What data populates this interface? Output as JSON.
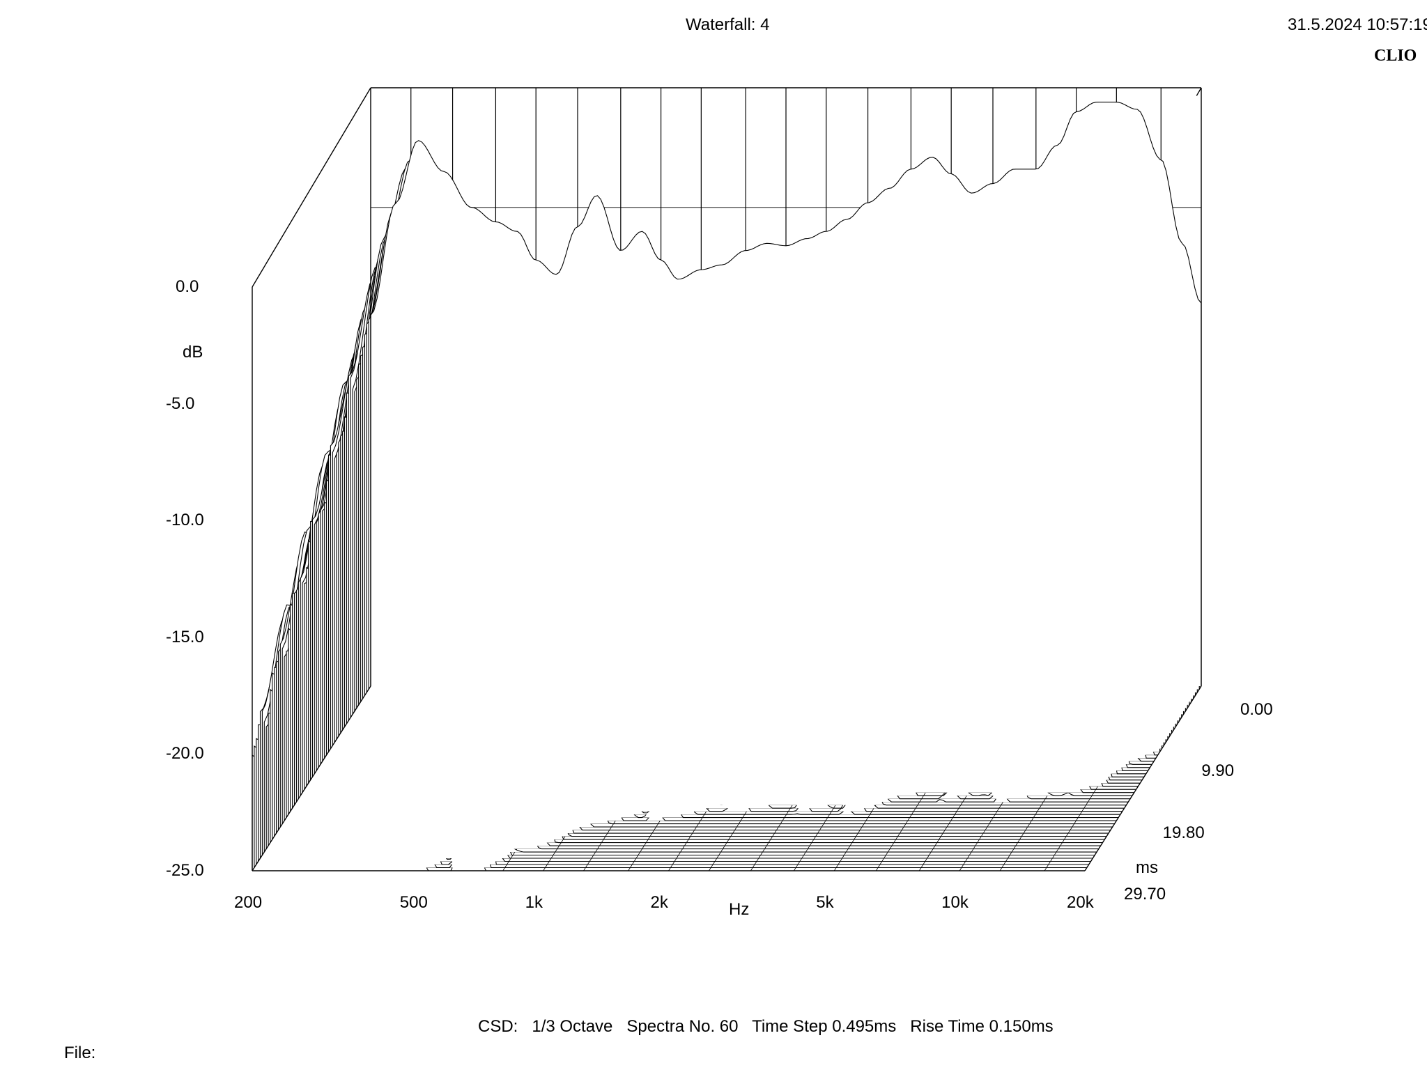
{
  "header": {
    "title": "Waterfall: 4",
    "timestamp": "31.5.2024 10:57:19",
    "brand": "CLIO"
  },
  "footer": {
    "settings": "CSD:   1/3 Octave   Spectra No. 60   Time Step 0.495ms   Rise Time 0.150ms",
    "file_label": "File:"
  },
  "chart_data": {
    "type": "waterfall",
    "y_axis": {
      "label": "dB",
      "ticks": [
        "0.0",
        "-5.0",
        "-10.0",
        "-15.0",
        "-20.0",
        "-25.0"
      ],
      "range": [
        -25,
        0
      ]
    },
    "x_axis": {
      "label": "Hz",
      "ticks": [
        "200",
        "500",
        "1k",
        "2k",
        "5k",
        "10k",
        "20k"
      ],
      "scale": "log",
      "range": [
        200,
        20000
      ]
    },
    "z_axis": {
      "label": "ms",
      "ticks": [
        "0.00",
        "9.90",
        "19.80",
        "29.70"
      ],
      "range": [
        0,
        29.7
      ]
    },
    "spectra_count": 60,
    "time_step_ms": 0.495,
    "rise_time_ms": 0.15,
    "smoothing": "1/3 Octave",
    "first_spectrum": {
      "freq_hz": [
        200,
        230,
        260,
        300,
        350,
        400,
        450,
        500,
        560,
        630,
        700,
        800,
        900,
        1000,
        1100,
        1250,
        1400,
        1600,
        1800,
        2000,
        2250,
        2500,
        2800,
        3150,
        3550,
        4000,
        4500,
        5000,
        5600,
        6300,
        7100,
        8000,
        9000,
        10000,
        11200,
        12500,
        14000,
        16000,
        18000,
        20000
      ],
      "db": [
        -9.5,
        -4.8,
        -2.2,
        -3.5,
        -5.0,
        -5.6,
        -6.0,
        -7.2,
        -7.8,
        -5.8,
        -4.5,
        -6.8,
        -6.0,
        -7.2,
        -8.0,
        -7.6,
        -7.4,
        -6.8,
        -6.5,
        -6.6,
        -6.3,
        -6.0,
        -5.5,
        -4.8,
        -4.2,
        -3.4,
        -2.9,
        -3.6,
        -4.4,
        -4.0,
        -3.4,
        -3.4,
        -2.4,
        -1.0,
        -0.6,
        -0.6,
        -0.9,
        -3.0,
        -6.5,
        -9.0
      ]
    },
    "grid": true,
    "legend": "none"
  }
}
